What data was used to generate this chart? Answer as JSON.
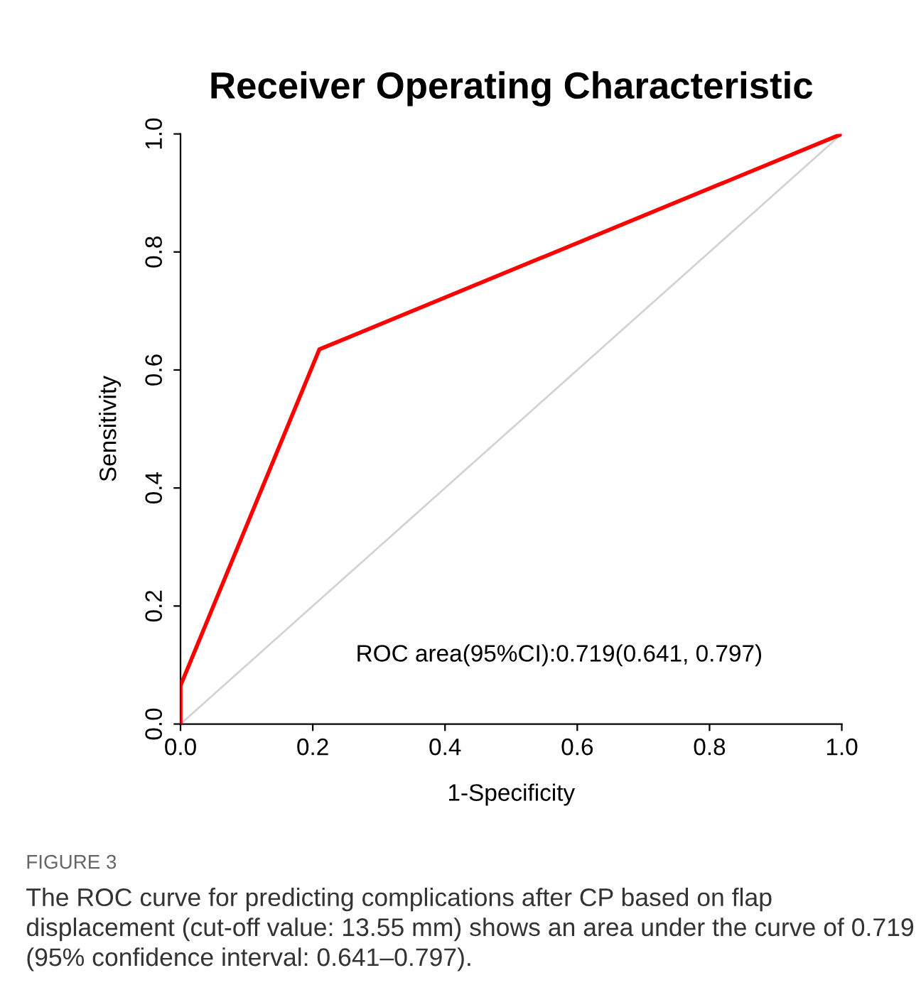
{
  "chart_data": {
    "type": "line",
    "title": "Receiver Operating Characteristic",
    "xlabel": "1-Specificity",
    "ylabel": "Sensitivity",
    "series": [
      {
        "color": "#ff0000",
        "x": [
          0,
          0,
          0.21,
          1
        ],
        "values": [
          0,
          0.065,
          0.635,
          1
        ]
      },
      {
        "color": "#d3d3d3",
        "x": [
          0,
          1
        ],
        "values": [
          0,
          1
        ]
      }
    ],
    "xlim": [
      0,
      1
    ],
    "ylim": [
      0,
      1
    ],
    "xticks": [
      {
        "value": 0,
        "label": "0.0"
      },
      0.2,
      0.4,
      0.6,
      0.8,
      {
        "value": 1,
        "label": "1.0"
      }
    ],
    "yticks": [
      {
        "value": 0,
        "label": "0.0"
      },
      0.2,
      0.4,
      0.6,
      0.8,
      {
        "value": 1,
        "label": "1.0"
      }
    ],
    "grid": false,
    "legend": false,
    "annotations": [
      "ROC area(95%CI):0.719(0.641, 0.797)",
      "FIGURE 3",
      "The ROC curve for predicting complications after CP based on flap displacement (cut-off value: 13.55 mm) shows an area under the curve of 0.719 (95% confidence interval: 0.641–0.797)."
    ]
  }
}
